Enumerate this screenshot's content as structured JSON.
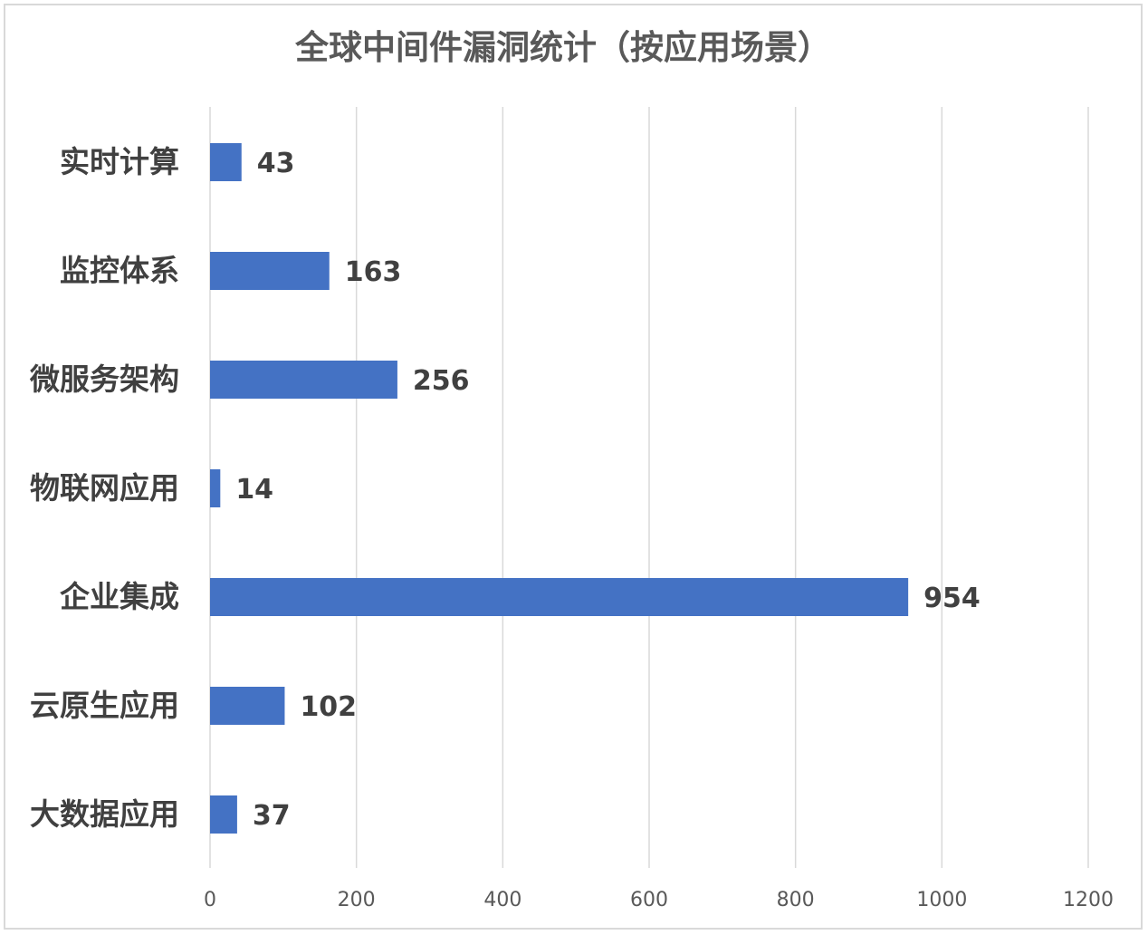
{
  "chart_data": {
    "type": "bar",
    "orientation": "horizontal",
    "title": "全球中间件漏洞统计（按应用场景）",
    "categories": [
      "实时计算",
      "监控体系",
      "微服务架构",
      "物联网应用",
      "企业集成",
      "云原生应用",
      "大数据应用"
    ],
    "values": [
      43,
      163,
      256,
      14,
      954,
      102,
      37
    ],
    "xlim": [
      0,
      1200
    ],
    "xticks": [
      "0",
      "200",
      "400",
      "600",
      "800",
      "1000",
      "1200"
    ],
    "grid": true,
    "legend": "none",
    "bar_color": "#4472C4",
    "gridline_color": "#d9d9d9"
  }
}
